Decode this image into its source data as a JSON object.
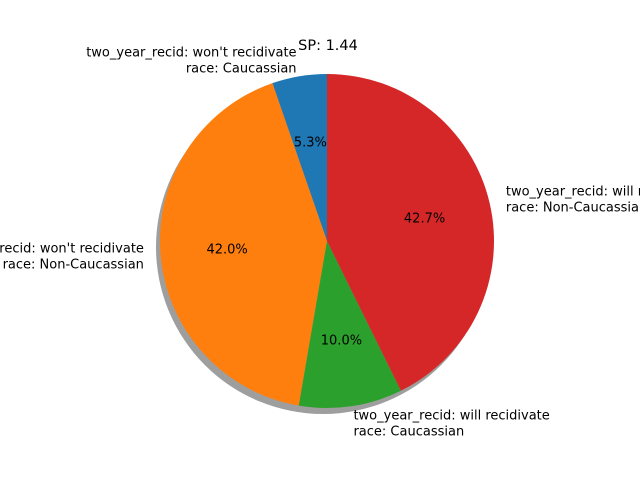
{
  "chart_data": {
    "type": "pie",
    "title": "SP: 1.44",
    "shadow": true,
    "start_angle_deg": 90,
    "counterclockwise": true,
    "slices": [
      {
        "label_lines": [
          "two_year_recid: won't recidivate",
          "race: Caucassian"
        ],
        "percent": 5.3,
        "pct_label": "5.3%",
        "color": "#1f77b4"
      },
      {
        "label_lines": [
          "two_year_recid: won't recidivate",
          "race: Non-Caucassian"
        ],
        "percent": 42.0,
        "pct_label": "42.0%",
        "color": "#ff7f0e"
      },
      {
        "label_lines": [
          "two_year_recid: will recidivate",
          "race: Caucassian"
        ],
        "percent": 10.0,
        "pct_label": "10.0%",
        "color": "#2ca02c"
      },
      {
        "label_lines": [
          "two_year_recid: will recidivate",
          "race: Non-Caucassian"
        ],
        "percent": 42.7,
        "pct_label": "42.7%",
        "color": "#d62728"
      }
    ]
  }
}
